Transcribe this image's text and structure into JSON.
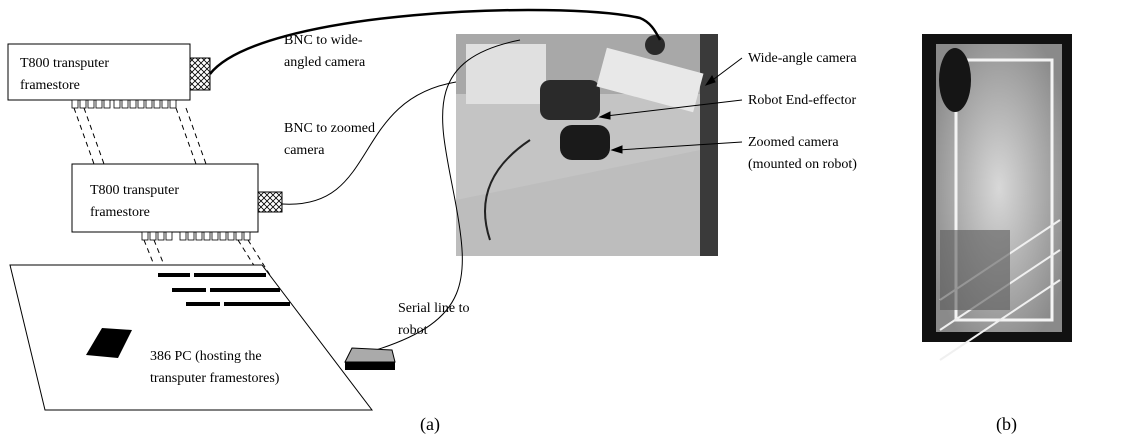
{
  "boxes": [
    {
      "label_lines": [
        "T800 transputer",
        "framestore"
      ]
    },
    {
      "label_lines": [
        "T800 transputer",
        "framestore"
      ]
    }
  ],
  "cable_labels": [
    {
      "lines": [
        "BNC to wide-",
        "angled camera"
      ]
    },
    {
      "lines": [
        "BNC to zoomed",
        "camera"
      ]
    },
    {
      "lines": [
        "Serial line to",
        "robot"
      ]
    }
  ],
  "pc_label": {
    "lines": [
      "386 PC (hosting the",
      "transputer framestores)"
    ]
  },
  "photo_labels": [
    {
      "lines": [
        "Wide-angle camera"
      ]
    },
    {
      "lines": [
        "Robot End-effector"
      ]
    },
    {
      "lines": [
        "Zoomed camera",
        "(mounted on robot)"
      ]
    }
  ],
  "captions": [
    "(a)",
    "(b)"
  ]
}
